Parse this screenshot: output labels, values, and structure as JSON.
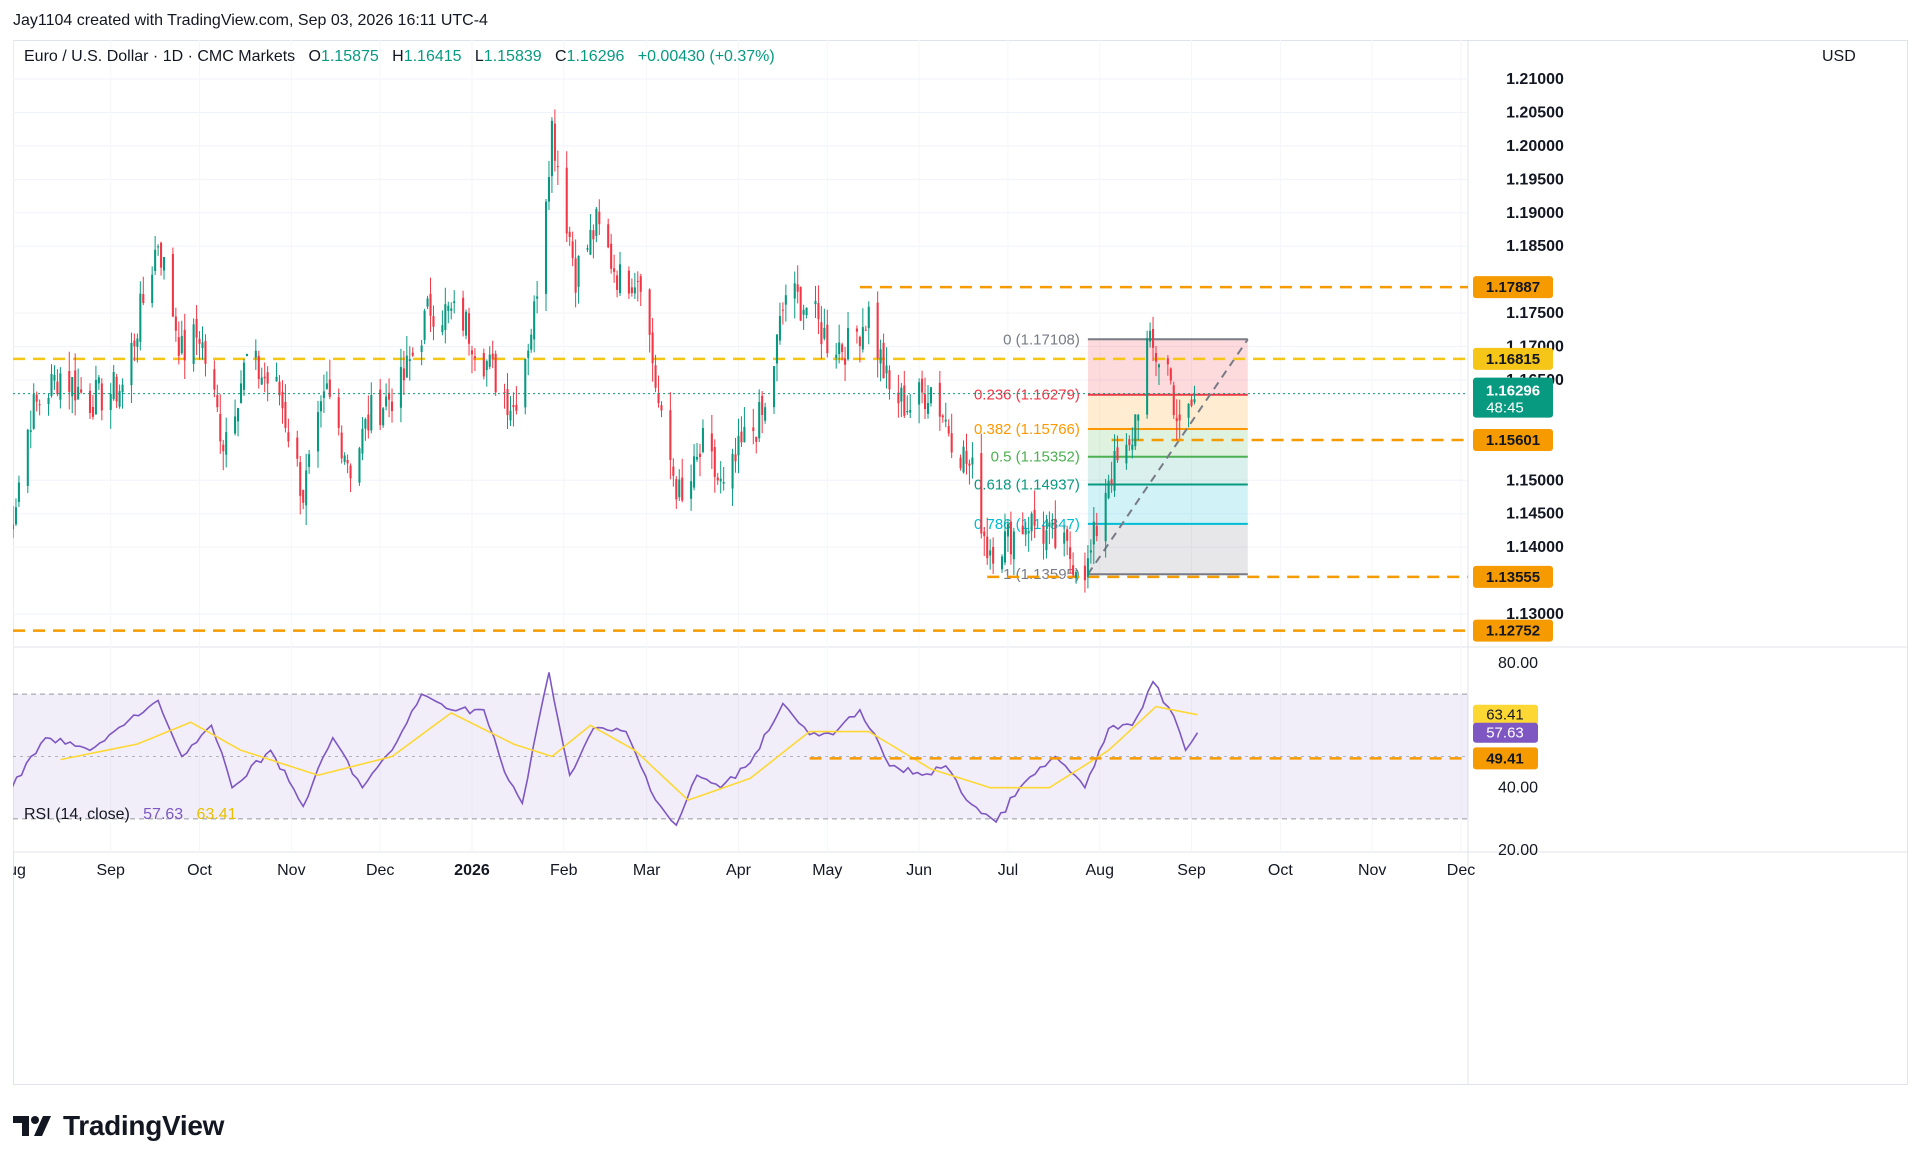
{
  "header": {
    "attribution": "Jay1104 created with TradingView.com, Sep 03, 2026 16:11 UTC-4"
  },
  "legend": {
    "title": "Euro / U.S. Dollar · 1D · CMC Markets",
    "open_label": "O",
    "open": "1.15875",
    "high_label": "H",
    "high": "1.16415",
    "low_label": "L",
    "low": "1.15839",
    "close_label": "C",
    "close": "1.16296",
    "change": "+0.00430 (+0.37%)"
  },
  "rsi_legend": {
    "label": "RSI (14, close)",
    "rsi": "57.63",
    "ma": "63.41"
  },
  "currency": "USD",
  "brand": "TradingView",
  "colors": {
    "up": "#089981",
    "down": "#f23645",
    "rsi": "#7e57c2",
    "rsi_ma": "#fdd835",
    "level_orange": "#f59b00",
    "level_yellow": "#f5c518",
    "price_tag": "#089981"
  },
  "chart_data": [
    {
      "type": "candlestick",
      "title": "Euro / U.S. Dollar · 1D · CMC Markets",
      "ylim": [
        1.125,
        1.215
      ],
      "y_ticks": [
        "1.21000",
        "1.20500",
        "1.20000",
        "1.19500",
        "1.19000",
        "1.18500",
        "1.17500",
        "1.17000",
        "1.16500",
        "1.15000",
        "1.14500",
        "1.14000",
        "1.13000"
      ],
      "x_tick_labels": [
        "ug",
        "Sep",
        "Oct",
        "Nov",
        "Dec",
        "2026",
        "Feb",
        "Mar",
        "Apr",
        "May",
        "Jun",
        "Jul",
        "Aug",
        "Sep",
        "Oct",
        "Nov",
        "Dec"
      ],
      "price_path": [
        {
          "date": "2025-07-28",
          "close": 1.14
        },
        {
          "date": "2025-08-05",
          "close": 1.16
        },
        {
          "date": "2025-08-15",
          "close": 1.166
        },
        {
          "date": "2025-08-25",
          "close": 1.162
        },
        {
          "date": "2025-09-05",
          "close": 1.164
        },
        {
          "date": "2025-09-17",
          "close": 1.186
        },
        {
          "date": "2025-09-25",
          "close": 1.169
        },
        {
          "date": "2025-10-01",
          "close": 1.172
        },
        {
          "date": "2025-10-09",
          "close": 1.156
        },
        {
          "date": "2025-10-17",
          "close": 1.168
        },
        {
          "date": "2025-10-28",
          "close": 1.163
        },
        {
          "date": "2025-11-05",
          "close": 1.148
        },
        {
          "date": "2025-11-13",
          "close": 1.163
        },
        {
          "date": "2025-11-21",
          "close": 1.152
        },
        {
          "date": "2025-11-28",
          "close": 1.16
        },
        {
          "date": "2025-12-08",
          "close": 1.164
        },
        {
          "date": "2025-12-18",
          "close": 1.176
        },
        {
          "date": "2025-12-29",
          "close": 1.174
        },
        {
          "date": "2026-01-08",
          "close": 1.166
        },
        {
          "date": "2026-01-15",
          "close": 1.161
        },
        {
          "date": "2026-01-22",
          "close": 1.175
        },
        {
          "date": "2026-01-28",
          "close": 1.203
        },
        {
          "date": "2026-02-05",
          "close": 1.181
        },
        {
          "date": "2026-02-12",
          "close": 1.188
        },
        {
          "date": "2026-02-20",
          "close": 1.18
        },
        {
          "date": "2026-02-27",
          "close": 1.181
        },
        {
          "date": "2026-03-06",
          "close": 1.158
        },
        {
          "date": "2026-03-13",
          "close": 1.146
        },
        {
          "date": "2026-03-20",
          "close": 1.155
        },
        {
          "date": "2026-03-27",
          "close": 1.148
        },
        {
          "date": "2026-04-03",
          "close": 1.156
        },
        {
          "date": "2026-04-10",
          "close": 1.16
        },
        {
          "date": "2026-04-17",
          "close": 1.178
        },
        {
          "date": "2026-04-24",
          "close": 1.176
        },
        {
          "date": "2026-05-01",
          "close": 1.171
        },
        {
          "date": "2026-05-08",
          "close": 1.17
        },
        {
          "date": "2026-05-15",
          "close": 1.175
        },
        {
          "date": "2026-05-22",
          "close": 1.163
        },
        {
          "date": "2026-05-29",
          "close": 1.161
        },
        {
          "date": "2026-06-05",
          "close": 1.164
        },
        {
          "date": "2026-06-12",
          "close": 1.157
        },
        {
          "date": "2026-06-19",
          "close": 1.151
        },
        {
          "date": "2026-06-24",
          "close": 1.14
        },
        {
          "date": "2026-06-30",
          "close": 1.141
        },
        {
          "date": "2026-07-08",
          "close": 1.144
        },
        {
          "date": "2026-07-16",
          "close": 1.141
        },
        {
          "date": "2026-07-24",
          "close": 1.138
        },
        {
          "date": "2026-07-28",
          "close": 1.137
        },
        {
          "date": "2026-08-04",
          "close": 1.151
        },
        {
          "date": "2026-08-11",
          "close": 1.154
        },
        {
          "date": "2026-08-17",
          "close": 1.17
        },
        {
          "date": "2026-08-24",
          "close": 1.167
        },
        {
          "date": "2026-08-28",
          "close": 1.157
        },
        {
          "date": "2026-09-03",
          "close": 1.16296
        }
      ],
      "last_price": "1.16296",
      "countdown": "48:45",
      "horizontal_levels": [
        {
          "value": 1.17887,
          "label": "1.17887",
          "style": "orange"
        },
        {
          "value": 1.16815,
          "label": "1.16815",
          "style": "yellow"
        },
        {
          "value": 1.15601,
          "label": "1.15601",
          "style": "orange"
        },
        {
          "value": 1.13555,
          "label": "1.13555",
          "style": "orange"
        },
        {
          "value": 1.12752,
          "label": "1.12752",
          "style": "orange"
        }
      ],
      "fibonacci": [
        {
          "ratio": "0",
          "price": 1.17108,
          "label": "0 (1.17108)",
          "color": "#787b86"
        },
        {
          "ratio": "0.236",
          "price": 1.16279,
          "label": "0.236 (1.16279)",
          "color": "#f23645"
        },
        {
          "ratio": "0.382",
          "price": 1.15766,
          "label": "0.382 (1.15766)",
          "color": "#ff9800"
        },
        {
          "ratio": "0.5",
          "price": 1.15352,
          "label": "0.5 (1.15352)",
          "color": "#4caf50"
        },
        {
          "ratio": "0.618",
          "price": 1.14937,
          "label": "0.618 (1.14937)",
          "color": "#089981"
        },
        {
          "ratio": "0.786",
          "price": 1.14347,
          "label": "0.786 (1.14347)",
          "color": "#00bcd4"
        },
        {
          "ratio": "1",
          "price": 1.13595,
          "label": "1 (1.13595)",
          "color": "#787b86"
        }
      ],
      "fib_trend_line": [
        {
          "date": "2026-07-28",
          "price": 1.13595
        },
        {
          "date": "2026-09-20",
          "price": 1.17108
        }
      ]
    },
    {
      "type": "line",
      "title": "RSI (14, close)",
      "ylim": [
        20,
        80
      ],
      "y_ticks": [
        "80.00",
        "40.00",
        "20.00"
      ],
      "bands": [
        70,
        30
      ],
      "series": [
        {
          "name": "RSI",
          "color": "#7e57c2",
          "points": [
            {
              "date": "2025-07-28",
              "value": 38
            },
            {
              "date": "2025-08-10",
              "value": 56
            },
            {
              "date": "2025-08-25",
              "value": 52
            },
            {
              "date": "2025-09-17",
              "value": 68
            },
            {
              "date": "2025-09-25",
              "value": 50
            },
            {
              "date": "2025-10-05",
              "value": 60
            },
            {
              "date": "2025-10-12",
              "value": 40
            },
            {
              "date": "2025-10-25",
              "value": 52
            },
            {
              "date": "2025-11-05",
              "value": 34
            },
            {
              "date": "2025-11-15",
              "value": 56
            },
            {
              "date": "2025-11-25",
              "value": 40
            },
            {
              "date": "2025-12-05",
              "value": 52
            },
            {
              "date": "2025-12-15",
              "value": 70
            },
            {
              "date": "2025-12-25",
              "value": 65
            },
            {
              "date": "2026-01-05",
              "value": 65
            },
            {
              "date": "2026-01-12",
              "value": 45
            },
            {
              "date": "2026-01-18",
              "value": 35
            },
            {
              "date": "2026-01-27",
              "value": 77
            },
            {
              "date": "2026-02-03",
              "value": 44
            },
            {
              "date": "2026-02-11",
              "value": 59
            },
            {
              "date": "2026-02-22",
              "value": 58
            },
            {
              "date": "2026-03-04",
              "value": 36
            },
            {
              "date": "2026-03-11",
              "value": 28
            },
            {
              "date": "2026-03-18",
              "value": 44
            },
            {
              "date": "2026-03-26",
              "value": 40
            },
            {
              "date": "2026-04-05",
              "value": 48
            },
            {
              "date": "2026-04-16",
              "value": 67
            },
            {
              "date": "2026-04-25",
              "value": 57
            },
            {
              "date": "2026-05-03",
              "value": 57
            },
            {
              "date": "2026-05-12",
              "value": 65
            },
            {
              "date": "2026-05-22",
              "value": 47
            },
            {
              "date": "2026-06-02",
              "value": 44
            },
            {
              "date": "2026-06-10",
              "value": 47
            },
            {
              "date": "2026-06-17",
              "value": 36
            },
            {
              "date": "2026-06-27",
              "value": 29
            },
            {
              "date": "2026-07-05",
              "value": 40
            },
            {
              "date": "2026-07-17",
              "value": 50
            },
            {
              "date": "2026-07-27",
              "value": 40
            },
            {
              "date": "2026-08-04",
              "value": 59
            },
            {
              "date": "2026-08-12",
              "value": 60
            },
            {
              "date": "2026-08-19",
              "value": 74
            },
            {
              "date": "2026-08-26",
              "value": 63
            },
            {
              "date": "2026-08-30",
              "value": 52
            },
            {
              "date": "2026-09-03",
              "value": 57.63
            }
          ]
        },
        {
          "name": "MA",
          "color": "#fdd835",
          "points": [
            {
              "date": "2025-08-15",
              "value": 49
            },
            {
              "date": "2025-09-10",
              "value": 54
            },
            {
              "date": "2025-09-28",
              "value": 61
            },
            {
              "date": "2025-10-15",
              "value": 52
            },
            {
              "date": "2025-11-10",
              "value": 44
            },
            {
              "date": "2025-12-05",
              "value": 50
            },
            {
              "date": "2025-12-25",
              "value": 64
            },
            {
              "date": "2026-01-15",
              "value": 54
            },
            {
              "date": "2026-01-28",
              "value": 50
            },
            {
              "date": "2026-02-10",
              "value": 60
            },
            {
              "date": "2026-02-25",
              "value": 52
            },
            {
              "date": "2026-03-15",
              "value": 36
            },
            {
              "date": "2026-04-05",
              "value": 43
            },
            {
              "date": "2026-04-25",
              "value": 58
            },
            {
              "date": "2026-05-15",
              "value": 58
            },
            {
              "date": "2026-06-05",
              "value": 46
            },
            {
              "date": "2026-06-25",
              "value": 40
            },
            {
              "date": "2026-07-15",
              "value": 40
            },
            {
              "date": "2026-08-04",
              "value": 52
            },
            {
              "date": "2026-08-20",
              "value": 66
            },
            {
              "date": "2026-09-03",
              "value": 63.41
            }
          ]
        }
      ],
      "horizontal_levels": [
        {
          "value": 49.41,
          "label": "49.41"
        }
      ],
      "value_tags": [
        "63.41",
        "57.63"
      ]
    }
  ]
}
